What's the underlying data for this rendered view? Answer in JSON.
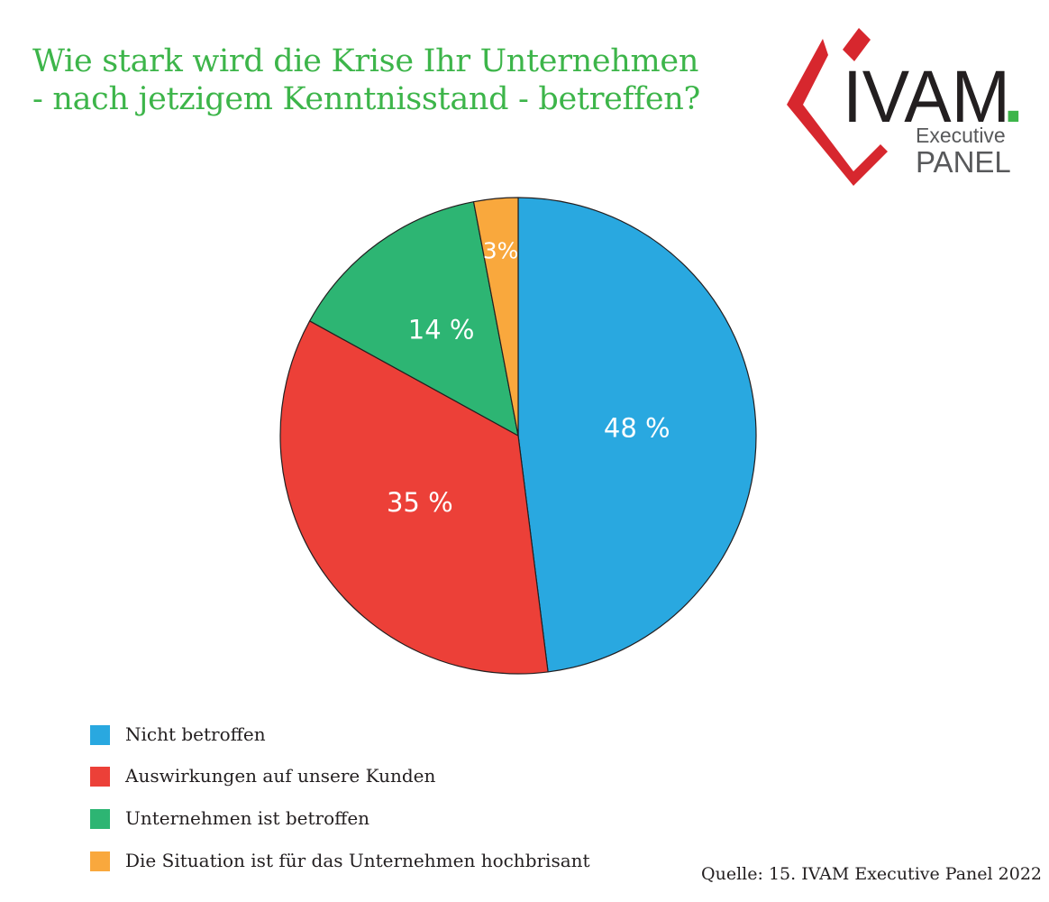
{
  "title": {
    "line1": "Wie stark wird die Krise Ihr Unternehmen",
    "line2": "- nach jetzigem Kenntnisstand - betreffen?",
    "color": "#3db54a"
  },
  "logo": {
    "text_main": "IVAM",
    "text_dot": ".",
    "text_executive": "Executive",
    "text_panel": "PANEL",
    "colors": {
      "red": "#d7272e",
      "dark": "#231f20",
      "green": "#3db54a",
      "gray": "#58595b"
    }
  },
  "chart_data": {
    "type": "pie",
    "slices": [
      {
        "name": "Nicht betroffen",
        "value": 48,
        "label": "48 %",
        "color": "#29a8e0"
      },
      {
        "name": "Auswirkungen auf unsere Kunden",
        "value": 35,
        "label": "35 %",
        "color": "#ec4038"
      },
      {
        "name": "Unternehmen ist betroffen",
        "value": 14,
        "label": "14 %",
        "color": "#2db573"
      },
      {
        "name": "Die Situation ist für das Unternehmen hochbrisant",
        "value": 3,
        "label": "3%",
        "color": "#f9a83d"
      }
    ],
    "start": "top",
    "direction": "clockwise",
    "legend_position": "bottom-left"
  },
  "source": "Quelle: 15. IVAM Executive Panel 2022"
}
